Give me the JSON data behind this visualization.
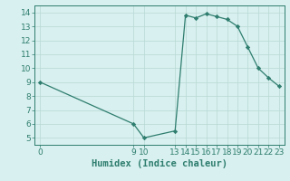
{
  "x_data": [
    0,
    9,
    10,
    13,
    14,
    15,
    16,
    17,
    18,
    19,
    20,
    21,
    22,
    23
  ],
  "y_data": [
    9.0,
    6.0,
    5.0,
    5.5,
    13.8,
    13.6,
    13.9,
    13.7,
    13.5,
    13.0,
    11.5,
    10.0,
    9.3,
    8.7
  ],
  "xlabel": "Humidex (Indice chaleur)",
  "xlim": [
    -0.5,
    23.5
  ],
  "ylim": [
    4.5,
    14.5
  ],
  "yticks": [
    5,
    6,
    7,
    8,
    9,
    10,
    11,
    12,
    13,
    14
  ],
  "xticks": [
    0,
    9,
    10,
    13,
    14,
    15,
    16,
    17,
    18,
    19,
    20,
    21,
    22,
    23
  ],
  "line_color": "#2e7d6e",
  "marker_color": "#2e7d6e",
  "bg_color": "#d8f0ef",
  "grid_color": "#b8d8d4",
  "axis_color": "#2e7d6e",
  "label_color": "#2e7d6e",
  "xlabel_fontsize": 7.5,
  "tick_fontsize": 6.5
}
